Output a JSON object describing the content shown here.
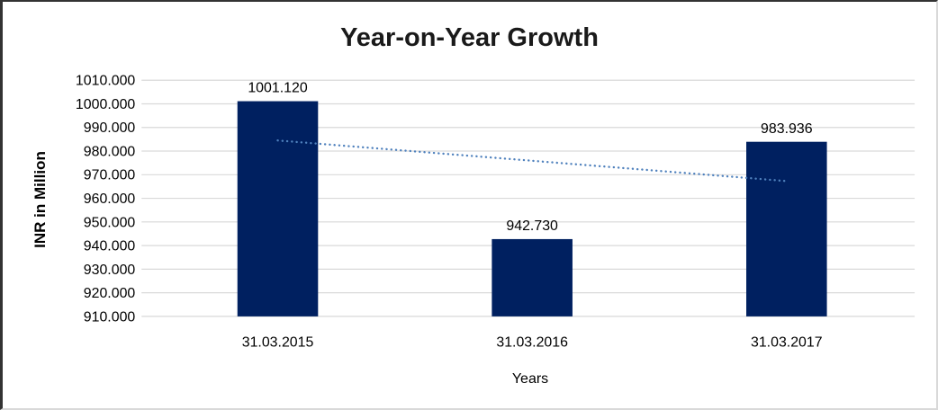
{
  "window": {
    "kind": "embedded-excel-chart"
  },
  "colors": {
    "bar": "#002060",
    "trendline": "#4f81bd",
    "gridline": "#d9d9d9",
    "text": "#000000",
    "title_text": "#1a1a1a",
    "frame_dark_edge": "#333333",
    "frame_light_edge": "#d9d9d9",
    "background": "#ffffff"
  },
  "chart_data": {
    "type": "bar",
    "title": "Year-on-Year Growth",
    "xlabel": "Years",
    "ylabel": "INR in Million",
    "categories": [
      "31.03.2015",
      "31.03.2016",
      "31.03.2017"
    ],
    "values": [
      1001.12,
      942.73,
      983.936
    ],
    "value_labels": [
      "1001.120",
      "942.730",
      "983.936"
    ],
    "series_name": "INR in Million",
    "ylim": [
      910,
      1010
    ],
    "ytick_step": 10,
    "ytick_labels": [
      "910.000",
      "920.000",
      "930.000",
      "940.000",
      "950.000",
      "960.000",
      "970.000",
      "980.000",
      "990.000",
      "1000.000",
      "1010.000"
    ],
    "grid": "horizontal",
    "legend": "none",
    "bar_color": "#002060",
    "grid_color": "#d9d9d9",
    "text_color": "#000000",
    "trendline": {
      "type": "linear",
      "style": "dotted",
      "color": "#4f81bd",
      "start_value": 984.5,
      "end_value": 967.3
    }
  }
}
